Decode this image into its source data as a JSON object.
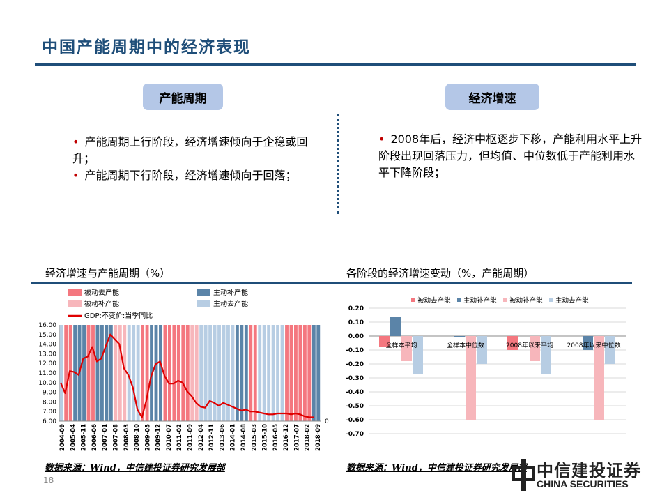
{
  "page": {
    "title": "中国产能周期中的经济表现",
    "page_number": "18"
  },
  "left_panel": {
    "pill": "产能周期",
    "bullets": [
      "产能周期上行阶段，经济增速倾向于企稳或回升；",
      "产能周期下行阶段，经济增速倾向于回落；"
    ]
  },
  "right_panel": {
    "pill": "经济增速",
    "bullets": [
      "2008年后，经济中枢逐步下移，产能利用水平上升阶段出现回落压力，但均值、中位数低于产能利用水平下降阶段；"
    ]
  },
  "chart_titles": {
    "left": "经济增速与产能周期（%）",
    "right": "各阶段的经济增速变动（%，产能周期）"
  },
  "sources": {
    "left": "数据来源：Wind，中信建投证券研究发展部",
    "right": "数据来源：Wind，中信建投证券研究发展部"
  },
  "logo": {
    "cn": "中信建投证券",
    "en": "CHINA SECURITIES"
  },
  "colors": {
    "passive_destock": "#f4777f",
    "active_restock": "#5b84a8",
    "passive_restock": "#f7b6bb",
    "active_destock": "#b7cde3",
    "gdp_line": "#e00000",
    "brand_blue": "#1f4e79"
  },
  "chart_data": [
    {
      "type": "line",
      "legend": [
        "被动去产能",
        "主动补产能",
        "被动补产能",
        "主动去产能",
        "GDP:不变价:当季同比"
      ],
      "ylim": [
        6.0,
        16.0
      ],
      "yticks": [
        "16.00",
        "15.00",
        "14.00",
        "13.00",
        "12.00",
        "11.00",
        "10.00",
        "9.00",
        "8.00",
        "7.00",
        "6.00"
      ],
      "right_axis_label": "0",
      "xlabels": [
        "2004-09",
        "2005-04",
        "2005-11",
        "2006-06",
        "2007-01",
        "2007-08",
        "2008-03",
        "2008-10",
        "2009-05",
        "2009-12",
        "2010-07",
        "2011-02",
        "2011-09",
        "2012-04",
        "2012-11",
        "2013-06",
        "2014-01",
        "2014-08",
        "2015-03",
        "2015-10",
        "2016-05",
        "2016-12",
        "2017-07",
        "2018-02",
        "2018-09"
      ],
      "gdp_series": {
        "name": "GDP:不变价:当季同比",
        "values": [
          10.0,
          8.9,
          11.2,
          11.1,
          10.8,
          12.5,
          12.7,
          13.7,
          12.2,
          12.5,
          13.8,
          15.0,
          14.5,
          14.0,
          11.5,
          10.8,
          9.5,
          7.2,
          6.4,
          8.2,
          10.6,
          11.9,
          12.2,
          10.7,
          9.9,
          9.9,
          10.2,
          10.0,
          9.1,
          8.6,
          7.9,
          7.5,
          7.4,
          8.1,
          7.9,
          7.6,
          7.9,
          7.7,
          7.5,
          7.3,
          7.1,
          7.2,
          7.0,
          7.0,
          6.9,
          6.8,
          6.7,
          6.7,
          6.8,
          6.8,
          6.8,
          6.7,
          6.8,
          6.7,
          6.5,
          6.4,
          6.4
        ]
      },
      "phases": [
        {
          "phase": "active_destock",
          "n": 1
        },
        {
          "phase": "passive_destock",
          "n": 2
        },
        {
          "phase": "active_restock",
          "n": 3
        },
        {
          "phase": "passive_destock",
          "n": 2
        },
        {
          "phase": "active_restock",
          "n": 4
        },
        {
          "phase": "passive_restock",
          "n": 3
        },
        {
          "phase": "active_destock",
          "n": 3
        },
        {
          "phase": "passive_destock",
          "n": 2
        },
        {
          "phase": "active_restock",
          "n": 3
        },
        {
          "phase": "passive_destock",
          "n": 6
        },
        {
          "phase": "passive_restock",
          "n": 2
        },
        {
          "phase": "active_destock",
          "n": 8
        },
        {
          "phase": "active_restock",
          "n": 3
        },
        {
          "phase": "passive_destock",
          "n": 2
        },
        {
          "phase": "active_destock",
          "n": 6
        },
        {
          "phase": "passive_destock",
          "n": 6
        },
        {
          "phase": "active_restock",
          "n": 2
        }
      ]
    },
    {
      "type": "bar",
      "ylim": [
        -0.7,
        0.2
      ],
      "yticks": [
        "0.20",
        "0.10",
        "0.00",
        "-0.10",
        "-0.20",
        "-0.30",
        "-0.40",
        "-0.50",
        "-0.60",
        "-0.70"
      ],
      "categories": [
        "全样本平均",
        "全样本中位数",
        "2008年以来平均",
        "2008年以来中位数"
      ],
      "series": [
        {
          "name": "被动去产能",
          "values": [
            -0.08,
            0.0,
            -0.1,
            0.0
          ]
        },
        {
          "name": "主动补产能",
          "values": [
            0.14,
            -0.01,
            0.0,
            -0.1
          ]
        },
        {
          "name": "被动补产能",
          "values": [
            -0.18,
            -0.6,
            -0.18,
            -0.6
          ]
        },
        {
          "name": "主动去产能",
          "values": [
            -0.27,
            -0.2,
            -0.27,
            -0.2
          ]
        }
      ]
    }
  ]
}
